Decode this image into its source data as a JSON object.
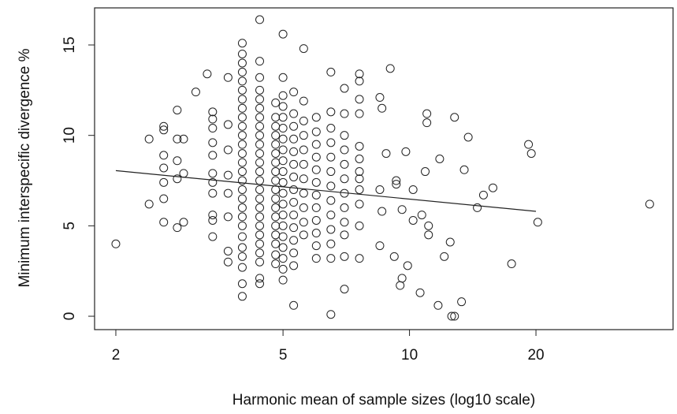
{
  "chart_data": {
    "type": "scatter",
    "xlabel": "Harmonic mean of sample sizes (log10 scale)",
    "ylabel": "Minimum interspecific divergence %",
    "xscale": "log",
    "xlim": [
      1.78,
      42.4
    ],
    "ylim": [
      -0.74,
      17.05
    ],
    "xticks": [
      2,
      5,
      10,
      20
    ],
    "yticks": [
      0,
      5,
      10,
      15
    ],
    "color": "#222222",
    "box": true,
    "x": [
      2,
      2.4,
      2.4,
      2.6,
      2.6,
      2.6,
      2.6,
      2.6,
      2.6,
      2.6,
      2.8,
      2.8,
      2.8,
      2.8,
      2.8,
      2.9,
      2.9,
      2.9,
      3.1,
      3.3,
      3.4,
      3.4,
      3.4,
      3.4,
      3.4,
      3.4,
      3.4,
      3.4,
      3.4,
      3.4,
      3.4,
      3.7,
      3.7,
      3.7,
      3.7,
      3.7,
      3.7,
      3.7,
      3.7,
      4.0,
      4.0,
      4.0,
      4.0,
      4.0,
      4.0,
      4.0,
      4.0,
      4.0,
      4.0,
      4.0,
      4.0,
      4.0,
      4.0,
      4.0,
      4.0,
      4.0,
      4.0,
      4.0,
      4.0,
      4.0,
      4.0,
      4.0,
      4.0,
      4.0,
      4.0,
      4.0,
      4.4,
      4.4,
      4.4,
      4.4,
      4.4,
      4.4,
      4.4,
      4.4,
      4.4,
      4.4,
      4.4,
      4.4,
      4.4,
      4.4,
      4.4,
      4.4,
      4.4,
      4.4,
      4.4,
      4.4,
      4.4,
      4.4,
      4.4,
      4.4,
      4.4,
      4.8,
      4.8,
      4.8,
      4.8,
      4.8,
      4.8,
      4.8,
      4.8,
      4.8,
      4.8,
      4.8,
      4.8,
      4.8,
      4.8,
      4.8,
      4.8,
      4.8,
      4.8,
      5.0,
      5.0,
      5.0,
      5.0,
      5.0,
      5.0,
      5.0,
      5.0,
      5.0,
      5.0,
      5.0,
      5.0,
      5.0,
      5.0,
      5.0,
      5.0,
      5.0,
      5.0,
      5.0,
      5.0,
      5.3,
      5.3,
      5.3,
      5.3,
      5.3,
      5.3,
      5.3,
      5.3,
      5.3,
      5.3,
      5.3,
      5.3,
      5.3,
      5.3,
      5.3,
      5.6,
      5.6,
      5.6,
      5.6,
      5.6,
      5.6,
      5.6,
      5.6,
      5.6,
      5.6,
      5.6,
      6.0,
      6.0,
      6.0,
      6.0,
      6.0,
      6.0,
      6.0,
      6.0,
      6.0,
      6.0,
      6.0,
      6.0,
      6.5,
      6.5,
      6.5,
      6.5,
      6.5,
      6.5,
      6.5,
      6.5,
      6.5,
      6.5,
      6.5,
      6.5,
      6.5,
      7.0,
      7.0,
      7.0,
      7.0,
      7.0,
      7.0,
      7.0,
      7.0,
      7.0,
      7.0,
      7.0,
      7.0,
      7.6,
      7.6,
      7.6,
      7.6,
      7.6,
      7.6,
      7.6,
      7.6,
      7.6,
      7.6,
      7.6,
      7.6,
      8.5,
      8.6,
      8.5,
      8.6,
      8.5,
      8.8,
      9.0,
      9.2,
      9.3,
      9.3,
      9.5,
      9.6,
      9.6,
      9.8,
      9.9,
      10.2,
      10.2,
      10.6,
      10.7,
      10.9,
      11.0,
      11.0,
      11.1,
      11.1,
      11.7,
      11.8,
      12.1,
      12.5,
      12.6,
      12.8,
      12.8,
      13.3,
      13.5,
      13.8,
      14.5,
      15.0,
      15.8,
      17.5,
      19.2,
      19.5,
      20.2,
      37.3
    ],
    "values": [
      4.0,
      9.8,
      6.2,
      10.5,
      10.3,
      8.9,
      8.2,
      7.4,
      6.5,
      5.2,
      11.4,
      9.8,
      8.6,
      7.6,
      4.9,
      9.8,
      7.9,
      5.2,
      12.4,
      13.4,
      11.3,
      10.9,
      10.4,
      9.6,
      8.9,
      7.9,
      7.4,
      6.8,
      5.6,
      5.3,
      4.4,
      13.2,
      10.6,
      9.2,
      7.8,
      6.8,
      5.5,
      3.6,
      3.0,
      1.1,
      1.8,
      2.7,
      3.3,
      3.8,
      4.4,
      5.0,
      5.5,
      6.0,
      6.5,
      7.0,
      7.5,
      8.0,
      8.5,
      9.0,
      9.5,
      10.0,
      10.5,
      11.0,
      11.5,
      12.0,
      12.5,
      13.0,
      13.5,
      14.0,
      14.5,
      15.1,
      1.8,
      2.1,
      3.0,
      3.5,
      4.0,
      4.5,
      5.0,
      5.5,
      6.0,
      6.5,
      7.0,
      7.5,
      8.0,
      8.5,
      9.0,
      9.5,
      10.0,
      10.5,
      11.0,
      11.5,
      12.0,
      12.5,
      13.2,
      14.1,
      16.4,
      2.9,
      3.4,
      4.0,
      4.5,
      5.0,
      5.5,
      6.0,
      6.5,
      7.0,
      7.5,
      8.0,
      8.5,
      9.0,
      9.5,
      10.0,
      10.5,
      11.0,
      11.8,
      2.0,
      2.6,
      3.2,
      3.8,
      4.4,
      5.0,
      5.6,
      6.2,
      6.8,
      7.4,
      8.0,
      8.6,
      9.2,
      9.8,
      10.4,
      11.0,
      11.6,
      12.2,
      13.2,
      15.6,
      0.6,
      2.8,
      3.5,
      4.2,
      4.9,
      5.6,
      6.3,
      7.0,
      7.7,
      8.4,
      9.1,
      9.8,
      10.5,
      11.2,
      12.4,
      4.5,
      5.2,
      6.0,
      6.8,
      7.6,
      8.4,
      9.2,
      10.0,
      10.8,
      11.9,
      14.8,
      3.2,
      3.9,
      4.6,
      5.3,
      6.0,
      6.7,
      7.4,
      8.1,
      8.8,
      9.5,
      10.2,
      11.0,
      0.1,
      3.2,
      4.0,
      4.8,
      5.6,
      6.4,
      7.2,
      8.0,
      8.8,
      9.6,
      10.4,
      11.3,
      13.5,
      1.5,
      3.3,
      4.5,
      5.2,
      6.0,
      6.8,
      7.6,
      8.4,
      9.2,
      10.0,
      11.2,
      12.6,
      3.2,
      5.0,
      6.2,
      7.0,
      7.6,
      8.0,
      8.7,
      9.4,
      11.2,
      12.0,
      13.0,
      13.4,
      3.9,
      5.8,
      7.0,
      11.5,
      12.1,
      9.0,
      13.7,
      3.3,
      7.3,
      7.5,
      1.7,
      2.1,
      5.9,
      9.1,
      2.8,
      7.0,
      5.3,
      1.3,
      5.6,
      8.0,
      11.2,
      10.7,
      4.5,
      5.0,
      0.6,
      8.7,
      3.3,
      4.1,
      0.0,
      0.0,
      11.0,
      0.8,
      8.1,
      9.9,
      6.0,
      6.7,
      7.1,
      2.9,
      9.5,
      9.0,
      5.2,
      6.2
    ],
    "trend_line": {
      "x": [
        2,
        20
      ],
      "values": [
        8.05,
        5.8
      ]
    }
  }
}
